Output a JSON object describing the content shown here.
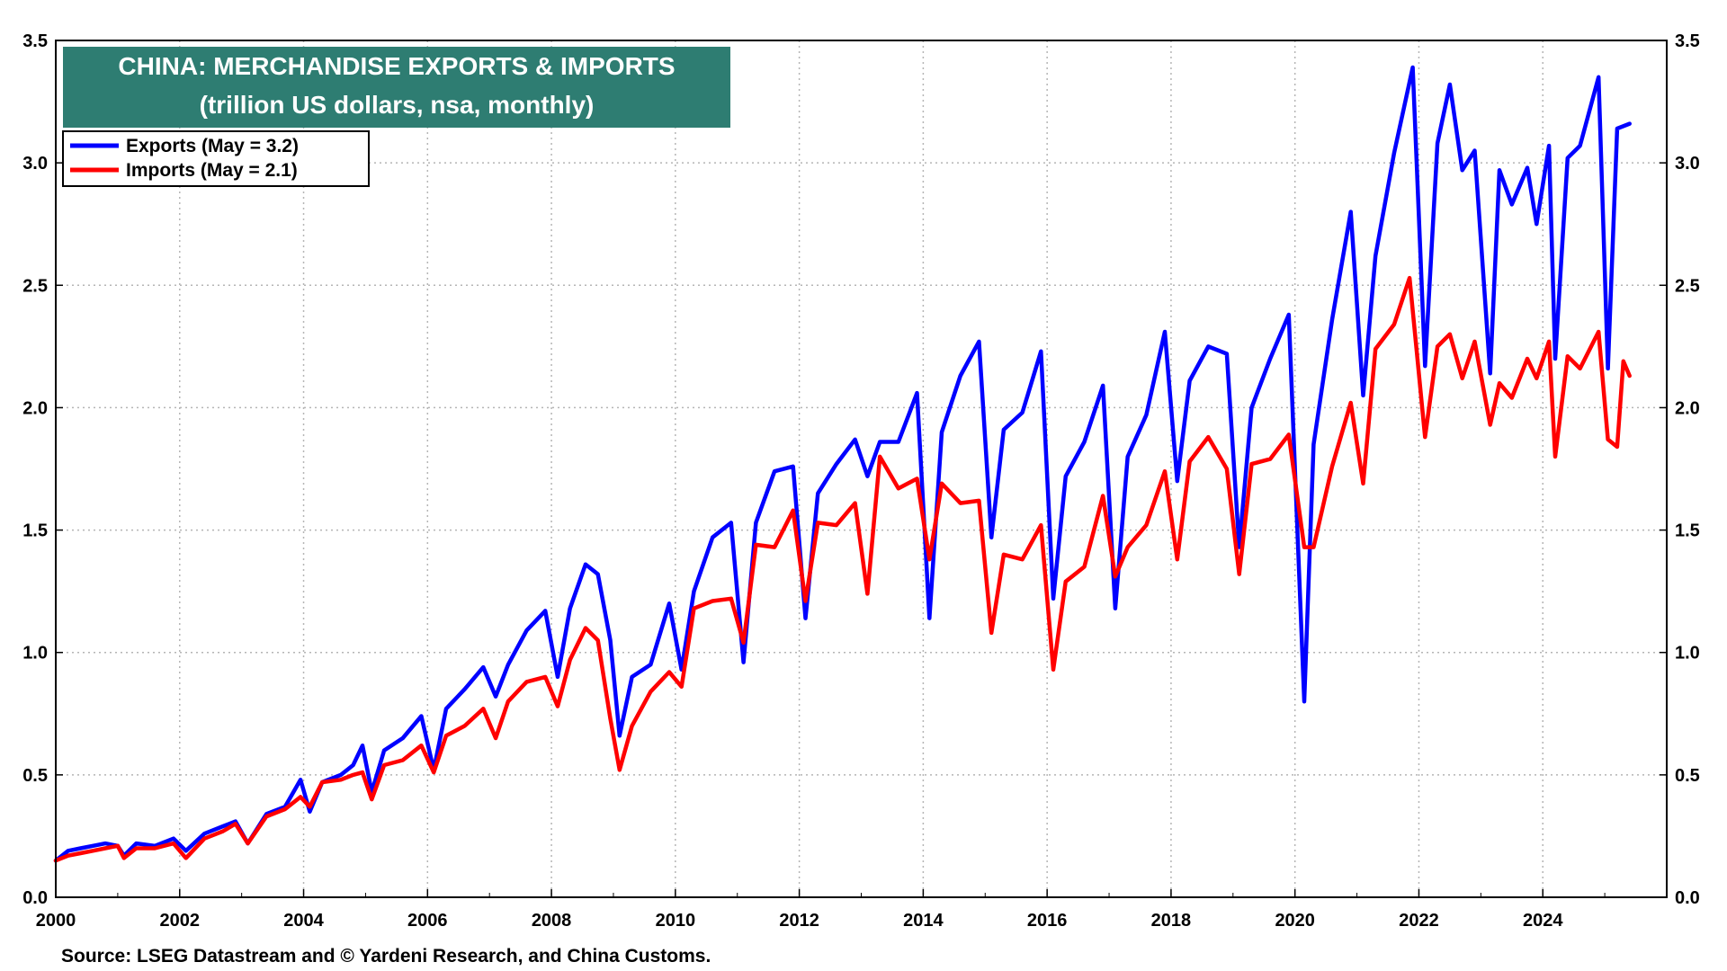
{
  "chart_data": {
    "type": "line",
    "title": "CHINA: MERCHANDISE EXPORTS & IMPORTS",
    "subtitle": "(trillion US dollars, nsa, monthly)",
    "source": "Source: LSEG Datastream and © Yardeni Research, and China Customs.",
    "x_tick_labels": [
      "2000",
      "2002",
      "2004",
      "2006",
      "2008",
      "2010",
      "2012",
      "2014",
      "2016",
      "2018",
      "2020",
      "2022",
      "2024"
    ],
    "xlim": [
      2000,
      2026
    ],
    "ylim": [
      0,
      3.5
    ],
    "y_tick_labels": [
      "0.0",
      "0.5",
      "1.0",
      "1.5",
      "2.0",
      "2.5",
      "3.0",
      "3.5"
    ],
    "grid": true,
    "legend_position": "top-left",
    "series": [
      {
        "name": "Exports (May = 3.2)",
        "color": "#0000ff",
        "points": [
          [
            2000.0,
            0.15
          ],
          [
            2000.2,
            0.19
          ],
          [
            2000.4,
            0.2
          ],
          [
            2000.6,
            0.21
          ],
          [
            2000.8,
            0.22
          ],
          [
            2001.0,
            0.21
          ],
          [
            2001.1,
            0.17
          ],
          [
            2001.3,
            0.22
          ],
          [
            2001.6,
            0.21
          ],
          [
            2001.9,
            0.24
          ],
          [
            2002.1,
            0.19
          ],
          [
            2002.4,
            0.26
          ],
          [
            2002.7,
            0.29
          ],
          [
            2002.9,
            0.31
          ],
          [
            2003.1,
            0.22
          ],
          [
            2003.4,
            0.34
          ],
          [
            2003.7,
            0.37
          ],
          [
            2003.95,
            0.48
          ],
          [
            2004.1,
            0.35
          ],
          [
            2004.3,
            0.47
          ],
          [
            2004.6,
            0.5
          ],
          [
            2004.8,
            0.54
          ],
          [
            2004.95,
            0.62
          ],
          [
            2005.1,
            0.43
          ],
          [
            2005.3,
            0.6
          ],
          [
            2005.6,
            0.65
          ],
          [
            2005.9,
            0.74
          ],
          [
            2006.1,
            0.52
          ],
          [
            2006.3,
            0.77
          ],
          [
            2006.6,
            0.85
          ],
          [
            2006.9,
            0.94
          ],
          [
            2007.1,
            0.82
          ],
          [
            2007.3,
            0.95
          ],
          [
            2007.6,
            1.09
          ],
          [
            2007.9,
            1.17
          ],
          [
            2008.1,
            0.9
          ],
          [
            2008.3,
            1.18
          ],
          [
            2008.55,
            1.36
          ],
          [
            2008.75,
            1.32
          ],
          [
            2008.95,
            1.05
          ],
          [
            2009.1,
            0.66
          ],
          [
            2009.3,
            0.9
          ],
          [
            2009.6,
            0.95
          ],
          [
            2009.9,
            1.2
          ],
          [
            2010.1,
            0.93
          ],
          [
            2010.3,
            1.25
          ],
          [
            2010.6,
            1.47
          ],
          [
            2010.9,
            1.53
          ],
          [
            2011.1,
            0.96
          ],
          [
            2011.3,
            1.53
          ],
          [
            2011.6,
            1.74
          ],
          [
            2011.9,
            1.76
          ],
          [
            2012.1,
            1.14
          ],
          [
            2012.3,
            1.65
          ],
          [
            2012.6,
            1.77
          ],
          [
            2012.9,
            1.87
          ],
          [
            2013.1,
            1.72
          ],
          [
            2013.3,
            1.86
          ],
          [
            2013.6,
            1.86
          ],
          [
            2013.9,
            2.06
          ],
          [
            2014.1,
            1.14
          ],
          [
            2014.3,
            1.9
          ],
          [
            2014.6,
            2.13
          ],
          [
            2014.9,
            2.27
          ],
          [
            2015.1,
            1.47
          ],
          [
            2015.3,
            1.91
          ],
          [
            2015.6,
            1.98
          ],
          [
            2015.9,
            2.23
          ],
          [
            2016.1,
            1.22
          ],
          [
            2016.3,
            1.72
          ],
          [
            2016.6,
            1.86
          ],
          [
            2016.9,
            2.09
          ],
          [
            2017.1,
            1.18
          ],
          [
            2017.3,
            1.8
          ],
          [
            2017.6,
            1.97
          ],
          [
            2017.9,
            2.31
          ],
          [
            2018.1,
            1.7
          ],
          [
            2018.3,
            2.11
          ],
          [
            2018.6,
            2.25
          ],
          [
            2018.9,
            2.22
          ],
          [
            2019.1,
            1.43
          ],
          [
            2019.3,
            2.0
          ],
          [
            2019.6,
            2.2
          ],
          [
            2019.9,
            2.38
          ],
          [
            2020.15,
            0.8
          ],
          [
            2020.3,
            1.85
          ],
          [
            2020.6,
            2.36
          ],
          [
            2020.9,
            2.8
          ],
          [
            2021.1,
            2.05
          ],
          [
            2021.3,
            2.62
          ],
          [
            2021.6,
            3.04
          ],
          [
            2021.9,
            3.39
          ],
          [
            2022.1,
            2.17
          ],
          [
            2022.3,
            3.08
          ],
          [
            2022.5,
            3.32
          ],
          [
            2022.7,
            2.97
          ],
          [
            2022.9,
            3.05
          ],
          [
            2023.15,
            2.14
          ],
          [
            2023.3,
            2.97
          ],
          [
            2023.5,
            2.83
          ],
          [
            2023.75,
            2.98
          ],
          [
            2023.9,
            2.75
          ],
          [
            2024.1,
            3.07
          ],
          [
            2024.2,
            2.2
          ],
          [
            2024.4,
            3.02
          ],
          [
            2024.6,
            3.07
          ],
          [
            2024.9,
            3.35
          ],
          [
            2025.05,
            2.16
          ],
          [
            2025.2,
            3.14
          ],
          [
            2025.4,
            3.16
          ]
        ]
      },
      {
        "name": "Imports  (May = 2.1)",
        "color": "#ff0000",
        "points": [
          [
            2000.0,
            0.15
          ],
          [
            2000.2,
            0.17
          ],
          [
            2000.4,
            0.18
          ],
          [
            2000.6,
            0.19
          ],
          [
            2000.8,
            0.2
          ],
          [
            2001.0,
            0.21
          ],
          [
            2001.1,
            0.16
          ],
          [
            2001.3,
            0.2
          ],
          [
            2001.6,
            0.2
          ],
          [
            2001.9,
            0.22
          ],
          [
            2002.1,
            0.16
          ],
          [
            2002.4,
            0.24
          ],
          [
            2002.7,
            0.27
          ],
          [
            2002.9,
            0.3
          ],
          [
            2003.1,
            0.22
          ],
          [
            2003.4,
            0.33
          ],
          [
            2003.7,
            0.36
          ],
          [
            2003.95,
            0.41
          ],
          [
            2004.1,
            0.37
          ],
          [
            2004.3,
            0.47
          ],
          [
            2004.6,
            0.48
          ],
          [
            2004.8,
            0.5
          ],
          [
            2004.95,
            0.51
          ],
          [
            2005.1,
            0.4
          ],
          [
            2005.3,
            0.54
          ],
          [
            2005.6,
            0.56
          ],
          [
            2005.9,
            0.62
          ],
          [
            2006.1,
            0.51
          ],
          [
            2006.3,
            0.66
          ],
          [
            2006.6,
            0.7
          ],
          [
            2006.9,
            0.77
          ],
          [
            2007.1,
            0.65
          ],
          [
            2007.3,
            0.8
          ],
          [
            2007.6,
            0.88
          ],
          [
            2007.9,
            0.9
          ],
          [
            2008.1,
            0.78
          ],
          [
            2008.3,
            0.97
          ],
          [
            2008.55,
            1.1
          ],
          [
            2008.75,
            1.05
          ],
          [
            2008.95,
            0.73
          ],
          [
            2009.1,
            0.52
          ],
          [
            2009.3,
            0.7
          ],
          [
            2009.6,
            0.84
          ],
          [
            2009.9,
            0.92
          ],
          [
            2010.1,
            0.86
          ],
          [
            2010.3,
            1.18
          ],
          [
            2010.6,
            1.21
          ],
          [
            2010.9,
            1.22
          ],
          [
            2011.1,
            1.04
          ],
          [
            2011.3,
            1.44
          ],
          [
            2011.6,
            1.43
          ],
          [
            2011.9,
            1.58
          ],
          [
            2012.1,
            1.21
          ],
          [
            2012.3,
            1.53
          ],
          [
            2012.6,
            1.52
          ],
          [
            2012.9,
            1.61
          ],
          [
            2013.1,
            1.24
          ],
          [
            2013.3,
            1.8
          ],
          [
            2013.6,
            1.67
          ],
          [
            2013.9,
            1.71
          ],
          [
            2014.1,
            1.38
          ],
          [
            2014.3,
            1.69
          ],
          [
            2014.6,
            1.61
          ],
          [
            2014.9,
            1.62
          ],
          [
            2015.1,
            1.08
          ],
          [
            2015.3,
            1.4
          ],
          [
            2015.6,
            1.38
          ],
          [
            2015.9,
            1.52
          ],
          [
            2016.1,
            0.93
          ],
          [
            2016.3,
            1.29
          ],
          [
            2016.6,
            1.35
          ],
          [
            2016.9,
            1.64
          ],
          [
            2017.1,
            1.31
          ],
          [
            2017.3,
            1.43
          ],
          [
            2017.6,
            1.52
          ],
          [
            2017.9,
            1.74
          ],
          [
            2018.1,
            1.38
          ],
          [
            2018.3,
            1.78
          ],
          [
            2018.6,
            1.88
          ],
          [
            2018.9,
            1.75
          ],
          [
            2019.1,
            1.32
          ],
          [
            2019.3,
            1.77
          ],
          [
            2019.6,
            1.79
          ],
          [
            2019.9,
            1.89
          ],
          [
            2020.15,
            1.43
          ],
          [
            2020.3,
            1.43
          ],
          [
            2020.6,
            1.76
          ],
          [
            2020.9,
            2.02
          ],
          [
            2021.1,
            1.69
          ],
          [
            2021.3,
            2.24
          ],
          [
            2021.6,
            2.34
          ],
          [
            2021.85,
            2.53
          ],
          [
            2022.1,
            1.88
          ],
          [
            2022.3,
            2.25
          ],
          [
            2022.5,
            2.3
          ],
          [
            2022.7,
            2.12
          ],
          [
            2022.9,
            2.27
          ],
          [
            2023.15,
            1.93
          ],
          [
            2023.3,
            2.1
          ],
          [
            2023.5,
            2.04
          ],
          [
            2023.75,
            2.2
          ],
          [
            2023.9,
            2.12
          ],
          [
            2024.1,
            2.27
          ],
          [
            2024.2,
            1.8
          ],
          [
            2024.4,
            2.21
          ],
          [
            2024.6,
            2.16
          ],
          [
            2024.9,
            2.31
          ],
          [
            2025.05,
            1.87
          ],
          [
            2025.2,
            1.84
          ],
          [
            2025.3,
            2.19
          ],
          [
            2025.4,
            2.13
          ]
        ]
      }
    ]
  }
}
